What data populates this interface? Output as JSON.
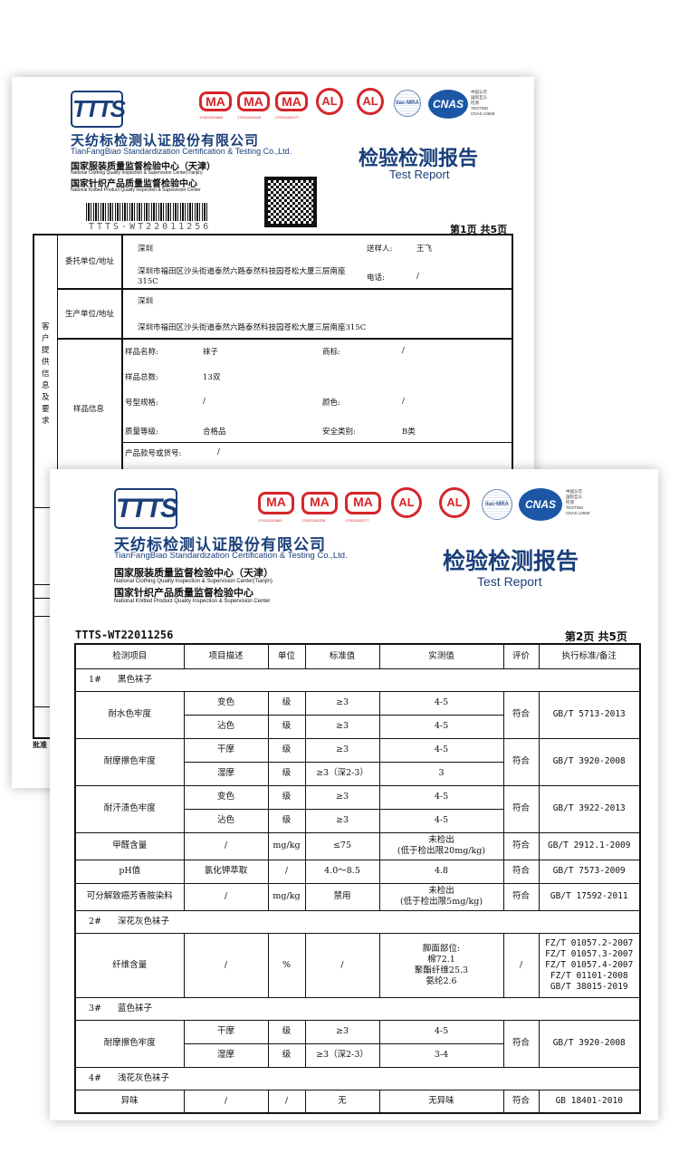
{
  "company": {
    "logo_text": "TTTS",
    "name_cn": "天纺标检测认证股份有限公司",
    "name_en": "TianFangBiao Standardization Certification & Testing Co.,Ltd.",
    "center1_cn": "国家服装质量监督检验中心（天津）",
    "center1_en": "National Clothing Quality Inspection & Supervision Center(Tianjin)",
    "center2_cn": "国家针织产品质量监督检验中心",
    "center2_en": "National Knitted Product Quality Inspection & Supervision Center"
  },
  "certs": {
    "ma_label": "MA",
    "ma_numbers": [
      "170011263663",
      "170011260226",
      "170011260277"
    ],
    "cal_label": "AL",
    "ilac_label": "ilac-MRA",
    "cnas_label": "CNAS",
    "cnas_side": "中国认可\n国际互认\n检测\nTESTING\nCNAS L0668"
  },
  "report": {
    "title_cn": "检验检测报告",
    "title_en": "Test Report",
    "report_no": "TTTS-WT22011256"
  },
  "page1": {
    "page_label": "第1页  共5页",
    "section_label": "客户提供信息及要求",
    "client_label": "委托单位/地址",
    "client_name": "深圳",
    "client_address": "深圳市福田区沙头街道泰然六路泰然科技园苍松大厦三层南座315C",
    "sender_label": "送样人:",
    "sender": "王飞",
    "phone_label": "电话:",
    "phone": "/",
    "producer_label": "生产单位/地址",
    "producer_name": "深圳",
    "producer_address": "深圳市福田区沙头街道泰然六路泰然科技园苍松大厦三层南座315C",
    "sample_label": "样品信息",
    "sample_name_label": "样品名称:",
    "sample_name": "袜子",
    "brand_label": "商标:",
    "brand": "/",
    "count_label": "样品总数:",
    "count": "13双",
    "size_label": "号型规格:",
    "size": "/",
    "color_label": "颜色:",
    "color": "/",
    "grade_label": "质量等级:",
    "grade": "合格品",
    "safety_label": "安全类别:",
    "safety": "B类",
    "style_label": "产品款号或货号:",
    "style": "/",
    "approve_label": "批准"
  },
  "page2": {
    "page_label": "第2页  共5页",
    "headers": [
      "检测项目",
      "项目描述",
      "单位",
      "标准值",
      "实测值",
      "评价",
      "执行标准/备注"
    ],
    "sections": [
      {
        "no": "1#",
        "name": "黑色袜子",
        "groups": [
          {
            "item": "耐水色牢度",
            "eval": "符合",
            "standard": "GB/T 5713-2013",
            "rows": [
              {
                "desc": "变色",
                "unit": "级",
                "std": "≥3",
                "result": "4-5"
              },
              {
                "desc": "沾色",
                "unit": "级",
                "std": "≥3",
                "result": "4-5"
              }
            ]
          },
          {
            "item": "耐摩擦色牢度",
            "eval": "符合",
            "standard": "GB/T 3920-2008",
            "rows": [
              {
                "desc": "干摩",
                "unit": "级",
                "std": "≥3",
                "result": "4-5"
              },
              {
                "desc": "湿摩",
                "unit": "级",
                "std": "≥3（深2-3）",
                "result": "3"
              }
            ]
          },
          {
            "item": "耐汗渍色牢度",
            "eval": "符合",
            "standard": "GB/T 3922-2013",
            "rows": [
              {
                "desc": "变色",
                "unit": "级",
                "std": "≥3",
                "result": "4-5"
              },
              {
                "desc": "沾色",
                "unit": "级",
                "std": "≥3",
                "result": "4-5"
              }
            ]
          },
          {
            "item": "甲醛含量",
            "eval": "符合",
            "standard": "GB/T 2912.1-2009",
            "rows": [
              {
                "desc": "/",
                "unit": "mg/kg",
                "std": "≤75",
                "result": "未检出\n(低于检出限20mg/kg)"
              }
            ]
          },
          {
            "item": "pH值",
            "eval": "符合",
            "standard": "GB/T 7573-2009",
            "rows": [
              {
                "desc": "氯化钾萃取",
                "unit": "/",
                "std": "4.0～8.5",
                "result": "4.8"
              }
            ]
          },
          {
            "item": "可分解致癌芳香胺染料",
            "eval": "符合",
            "standard": "GB/T 17592-2011",
            "rows": [
              {
                "desc": "/",
                "unit": "mg/kg",
                "std": "禁用",
                "result": "未检出\n(低于检出限5mg/kg)"
              }
            ]
          }
        ]
      },
      {
        "no": "2#",
        "name": "深花灰色袜子",
        "groups": [
          {
            "item": "纤维含量",
            "eval": "/",
            "standard": "FZ/T 01057.2-2007\nFZ/T 01057.3-2007\nFZ/T 01057.4-2007\nFZ/T 01101-2008\nGB/T 38015-2019",
            "rows": [
              {
                "desc": "/",
                "unit": "%",
                "std": "/",
                "result": "脚面部位:\n棉72.1\n聚酯纤维25.3\n氨纶2.6"
              }
            ]
          }
        ]
      },
      {
        "no": "3#",
        "name": "蓝色袜子",
        "groups": [
          {
            "item": "耐摩擦色牢度",
            "eval": "符合",
            "standard": "GB/T 3920-2008",
            "rows": [
              {
                "desc": "干摩",
                "unit": "级",
                "std": "≥3",
                "result": "4-5"
              },
              {
                "desc": "湿摩",
                "unit": "级",
                "std": "≥3（深2-3）",
                "result": "3-4"
              }
            ]
          }
        ]
      },
      {
        "no": "4#",
        "name": "浅花灰色袜子",
        "groups": [
          {
            "item": "异味",
            "eval": "符合",
            "standard": "GB 18401-2010",
            "rows": [
              {
                "desc": "/",
                "unit": "/",
                "std": "无",
                "result": "无异味"
              }
            ]
          }
        ]
      }
    ]
  }
}
